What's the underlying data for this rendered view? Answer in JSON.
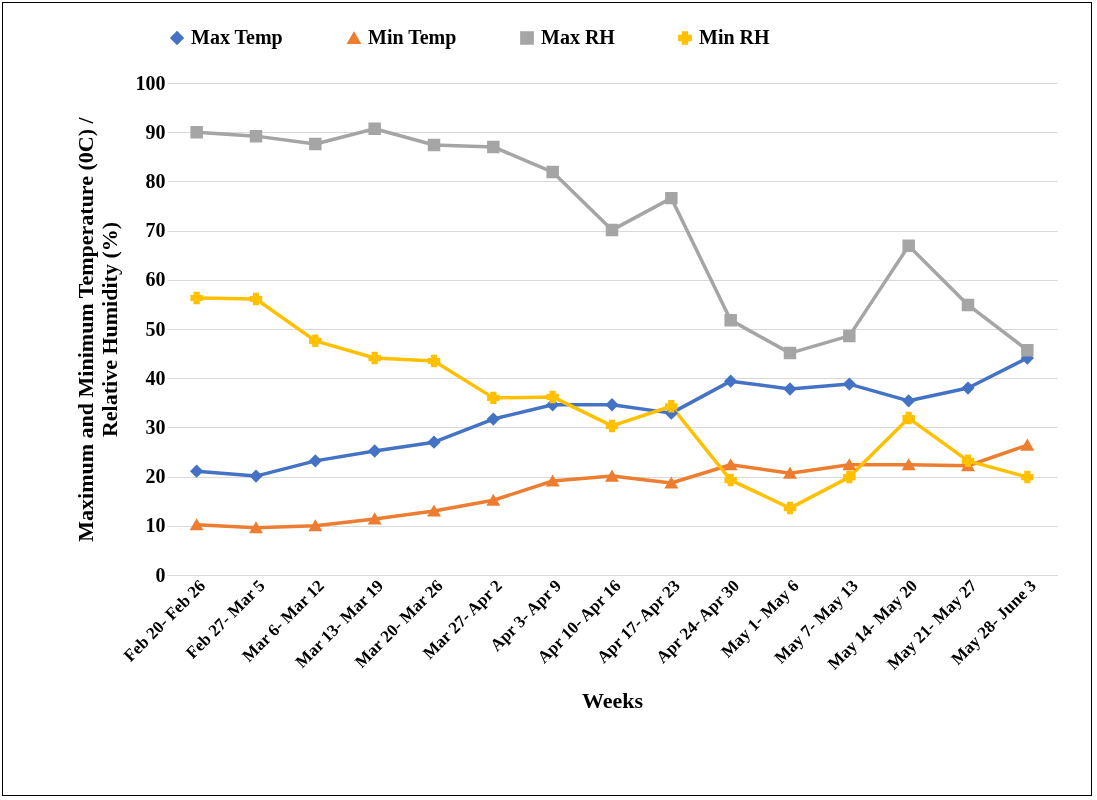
{
  "chart_data": {
    "type": "line",
    "categories": [
      "Feb 20- Feb 26",
      "Feb 27- Mar 5",
      "Mar 6- Mar 12",
      "Mar 13- Mar 19",
      "Mar 20- Mar 26",
      "Mar 27- Apr 2",
      "Apr 3- Apr 9",
      "Apr 10- Apr 16",
      "Apr 17- Apr 23",
      "Apr 24- Apr 30",
      "May 1- May 6",
      "May 7- May 13",
      "May 14- May 20",
      "May 21- May 27",
      "May 28- June 3"
    ],
    "xlabel": "Weeks",
    "ylabel": "Maximum and Minimum Temperature (0C) /\nRelative Humidity (%)",
    "ylim": [
      0,
      100
    ],
    "yticks": [
      0,
      10,
      20,
      30,
      40,
      50,
      60,
      70,
      80,
      90,
      100
    ],
    "grid": "y",
    "legend": "top",
    "series": [
      {
        "name": "Max Temp",
        "color": "#4472c4",
        "marker": "diamond",
        "values": [
          21.1,
          20.1,
          23.2,
          25.2,
          27.0,
          31.7,
          34.6,
          34.6,
          32.9,
          39.4,
          37.8,
          38.8,
          35.4,
          38.0,
          44.1
        ]
      },
      {
        "name": "Min Temp",
        "color": "#ed7d31",
        "marker": "triangle",
        "values": [
          10.2,
          9.6,
          10.0,
          11.4,
          13.0,
          15.2,
          19.1,
          20.1,
          18.7,
          22.4,
          20.7,
          22.4,
          22.4,
          22.2,
          26.4
        ]
      },
      {
        "name": "Max RH",
        "color": "#a5a5a5",
        "marker": "square",
        "values": [
          90.0,
          89.2,
          87.6,
          90.7,
          87.4,
          87.0,
          81.9,
          70.1,
          76.6,
          51.8,
          45.1,
          48.6,
          66.9,
          54.9,
          45.7
        ]
      },
      {
        "name": "Min RH",
        "color": "#ffc000",
        "marker": "cross",
        "values": [
          56.3,
          56.1,
          47.6,
          44.1,
          43.5,
          36.0,
          36.2,
          30.3,
          34.3,
          19.3,
          13.6,
          19.9,
          31.9,
          23.2,
          19.9
        ]
      }
    ]
  }
}
